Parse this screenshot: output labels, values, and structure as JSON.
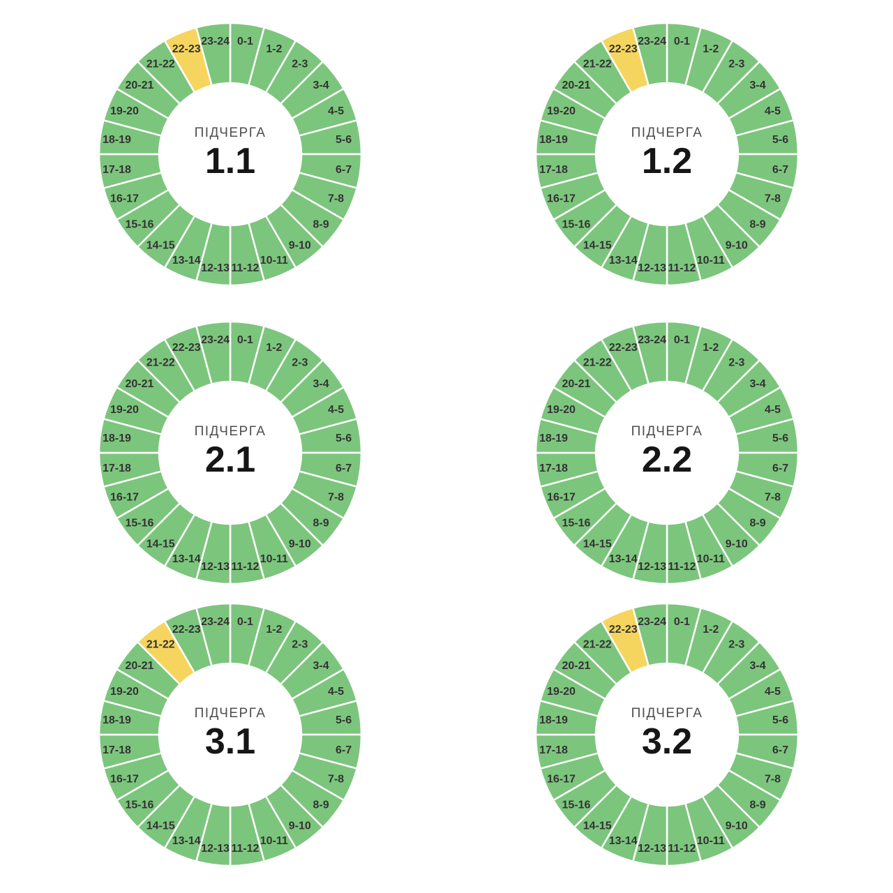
{
  "page": {
    "background": "#ffffff",
    "grid": {
      "rows": 3,
      "cols": 2
    }
  },
  "style": {
    "segment_green": "#7CC57D",
    "segment_yellow": "#F6D55E",
    "divider": "#FFFFFF",
    "hour_label_color": "#333333",
    "center_title_color": "#4D4D4D",
    "center_number_color": "#161616"
  },
  "chart_data": [
    {
      "type": "pie",
      "subtype": "donut",
      "title": "ПІДЧЕРГА 1.1",
      "center_label": "ПІДЧЕРГА",
      "center_value": "1.1",
      "categories": [
        "0-1",
        "1-2",
        "2-3",
        "3-4",
        "4-5",
        "5-6",
        "6-7",
        "7-8",
        "8-9",
        "9-10",
        "10-11",
        "11-12",
        "12-13",
        "13-14",
        "14-15",
        "15-16",
        "16-17",
        "17-18",
        "18-19",
        "19-20",
        "20-21",
        "21-22",
        "22-23",
        "23-24"
      ],
      "values": [
        1,
        1,
        1,
        1,
        1,
        1,
        1,
        1,
        1,
        1,
        1,
        1,
        1,
        1,
        1,
        1,
        1,
        1,
        1,
        1,
        1,
        1,
        1,
        1
      ],
      "value_unit": "hour",
      "highlighted_categories": [
        "22-23"
      ],
      "default_color": "#7CC57D",
      "highlight_color": "#F6D55E",
      "start_angle_deg": 0,
      "direction": "clockwise",
      "legend": "none"
    },
    {
      "type": "pie",
      "subtype": "donut",
      "title": "ПІДЧЕРГА 1.2",
      "center_label": "ПІДЧЕРГА",
      "center_value": "1.2",
      "categories": [
        "0-1",
        "1-2",
        "2-3",
        "3-4",
        "4-5",
        "5-6",
        "6-7",
        "7-8",
        "8-9",
        "9-10",
        "10-11",
        "11-12",
        "12-13",
        "13-14",
        "14-15",
        "15-16",
        "16-17",
        "17-18",
        "18-19",
        "19-20",
        "20-21",
        "21-22",
        "22-23",
        "23-24"
      ],
      "values": [
        1,
        1,
        1,
        1,
        1,
        1,
        1,
        1,
        1,
        1,
        1,
        1,
        1,
        1,
        1,
        1,
        1,
        1,
        1,
        1,
        1,
        1,
        1,
        1
      ],
      "value_unit": "hour",
      "highlighted_categories": [
        "22-23"
      ],
      "default_color": "#7CC57D",
      "highlight_color": "#F6D55E",
      "start_angle_deg": 0,
      "direction": "clockwise",
      "legend": "none"
    },
    {
      "type": "pie",
      "subtype": "donut",
      "title": "ПІДЧЕРГА 2.1",
      "center_label": "ПІДЧЕРГА",
      "center_value": "2.1",
      "categories": [
        "0-1",
        "1-2",
        "2-3",
        "3-4",
        "4-5",
        "5-6",
        "6-7",
        "7-8",
        "8-9",
        "9-10",
        "10-11",
        "11-12",
        "12-13",
        "13-14",
        "14-15",
        "15-16",
        "16-17",
        "17-18",
        "18-19",
        "19-20",
        "20-21",
        "21-22",
        "22-23",
        "23-24"
      ],
      "values": [
        1,
        1,
        1,
        1,
        1,
        1,
        1,
        1,
        1,
        1,
        1,
        1,
        1,
        1,
        1,
        1,
        1,
        1,
        1,
        1,
        1,
        1,
        1,
        1
      ],
      "value_unit": "hour",
      "highlighted_categories": [],
      "default_color": "#7CC57D",
      "highlight_color": "#F6D55E",
      "start_angle_deg": 0,
      "direction": "clockwise",
      "legend": "none"
    },
    {
      "type": "pie",
      "subtype": "donut",
      "title": "ПІДЧЕРГА 2.2",
      "center_label": "ПІДЧЕРГА",
      "center_value": "2.2",
      "categories": [
        "0-1",
        "1-2",
        "2-3",
        "3-4",
        "4-5",
        "5-6",
        "6-7",
        "7-8",
        "8-9",
        "9-10",
        "10-11",
        "11-12",
        "12-13",
        "13-14",
        "14-15",
        "15-16",
        "16-17",
        "17-18",
        "18-19",
        "19-20",
        "20-21",
        "21-22",
        "22-23",
        "23-24"
      ],
      "values": [
        1,
        1,
        1,
        1,
        1,
        1,
        1,
        1,
        1,
        1,
        1,
        1,
        1,
        1,
        1,
        1,
        1,
        1,
        1,
        1,
        1,
        1,
        1,
        1
      ],
      "value_unit": "hour",
      "highlighted_categories": [],
      "default_color": "#7CC57D",
      "highlight_color": "#F6D55E",
      "start_angle_deg": 0,
      "direction": "clockwise",
      "legend": "none"
    },
    {
      "type": "pie",
      "subtype": "donut",
      "title": "ПІДЧЕРГА 3.1",
      "center_label": "ПІДЧЕРГА",
      "center_value": "3.1",
      "categories": [
        "0-1",
        "1-2",
        "2-3",
        "3-4",
        "4-5",
        "5-6",
        "6-7",
        "7-8",
        "8-9",
        "9-10",
        "10-11",
        "11-12",
        "12-13",
        "13-14",
        "14-15",
        "15-16",
        "16-17",
        "17-18",
        "18-19",
        "19-20",
        "20-21",
        "21-22",
        "22-23",
        "23-24"
      ],
      "values": [
        1,
        1,
        1,
        1,
        1,
        1,
        1,
        1,
        1,
        1,
        1,
        1,
        1,
        1,
        1,
        1,
        1,
        1,
        1,
        1,
        1,
        1,
        1,
        1
      ],
      "value_unit": "hour",
      "highlighted_categories": [
        "21-22"
      ],
      "default_color": "#7CC57D",
      "highlight_color": "#F6D55E",
      "start_angle_deg": 0,
      "direction": "clockwise",
      "legend": "none"
    },
    {
      "type": "pie",
      "subtype": "donut",
      "title": "ПІДЧЕРГА 3.2",
      "center_label": "ПІДЧЕРГА",
      "center_value": "3.2",
      "categories": [
        "0-1",
        "1-2",
        "2-3",
        "3-4",
        "4-5",
        "5-6",
        "6-7",
        "7-8",
        "8-9",
        "9-10",
        "10-11",
        "11-12",
        "12-13",
        "13-14",
        "14-15",
        "15-16",
        "16-17",
        "17-18",
        "18-19",
        "19-20",
        "20-21",
        "21-22",
        "22-23",
        "23-24"
      ],
      "values": [
        1,
        1,
        1,
        1,
        1,
        1,
        1,
        1,
        1,
        1,
        1,
        1,
        1,
        1,
        1,
        1,
        1,
        1,
        1,
        1,
        1,
        1,
        1,
        1
      ],
      "value_unit": "hour",
      "highlighted_categories": [
        "22-23"
      ],
      "default_color": "#7CC57D",
      "highlight_color": "#F6D55E",
      "start_angle_deg": 0,
      "direction": "clockwise",
      "legend": "none"
    }
  ]
}
